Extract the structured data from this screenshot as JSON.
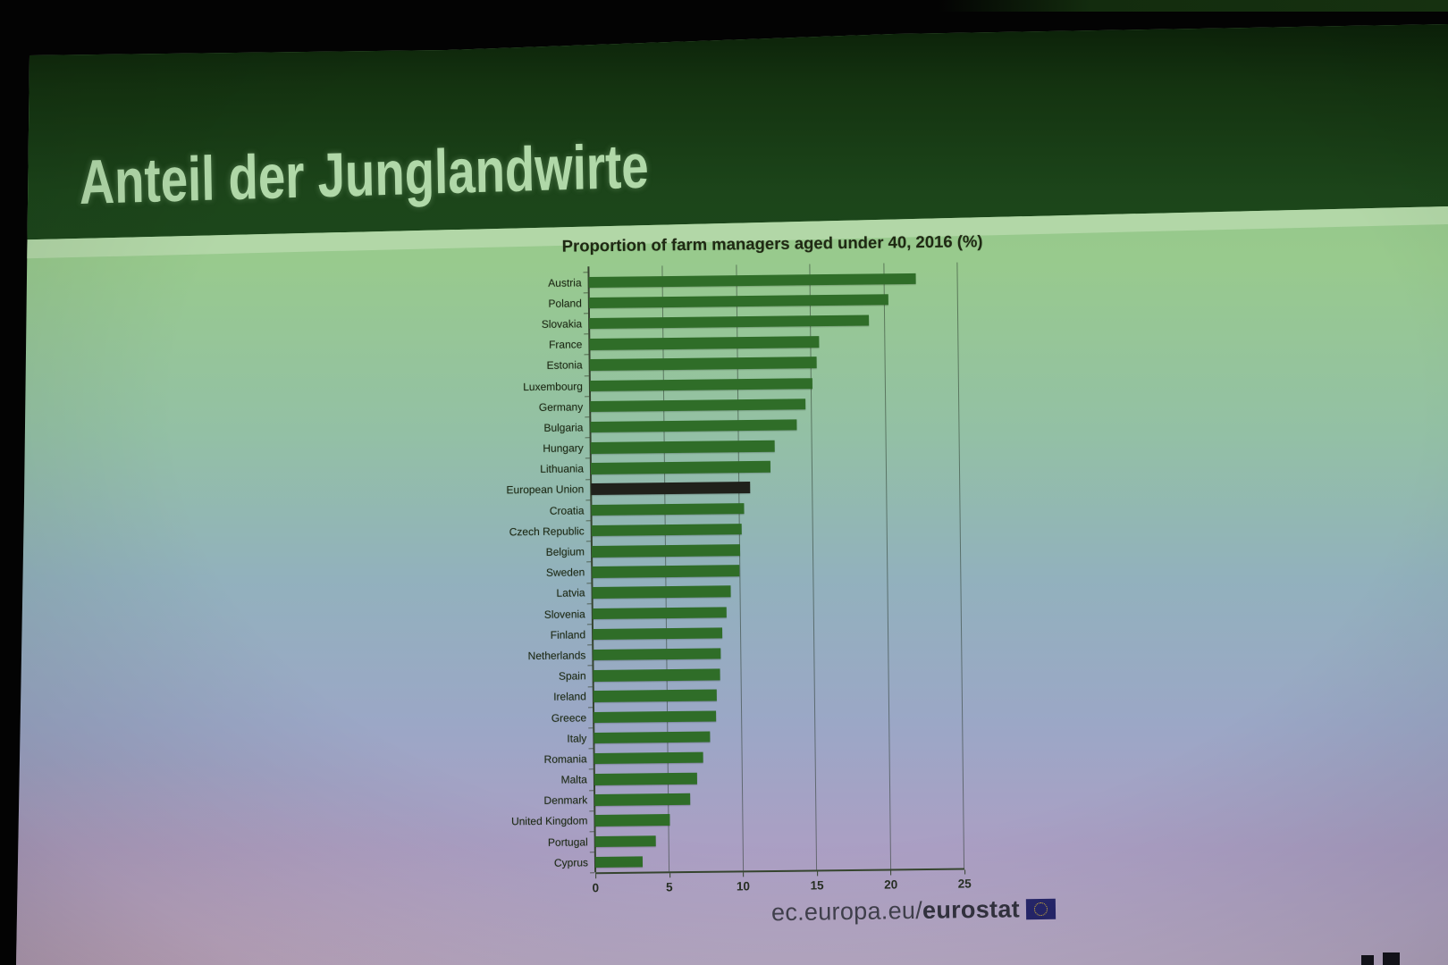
{
  "slide": {
    "header": {
      "title": "Anteil der Junglandwirte"
    },
    "footer": {
      "url_prefix": "ec.europa.eu/",
      "url_bold": "eurostat",
      "logo": "eu-flag-icon"
    },
    "colors": {
      "header_bg": "#1c451a",
      "accent_strip": "#b2d7a7",
      "title_text": "#b0d8a8",
      "bar": "#2f6d28",
      "highlight_bar": "#20211b"
    }
  },
  "chart_data": {
    "type": "bar",
    "orientation": "horizontal",
    "title": "Proportion of farm managers aged under 40, 2016 (%)",
    "categories": [
      "Austria",
      "Poland",
      "Slovakia",
      "France",
      "Estonia",
      "Luxembourg",
      "Germany",
      "Bulgaria",
      "Hungary",
      "Lithuania",
      "European Union",
      "Croatia",
      "Czech Republic",
      "Belgium",
      "Sweden",
      "Latvia",
      "Slovenia",
      "Finland",
      "Netherlands",
      "Spain",
      "Ireland",
      "Greece",
      "Italy",
      "Romania",
      "Malta",
      "Denmark",
      "United Kingdom",
      "Portugal",
      "Cyprus"
    ],
    "values": [
      22.2,
      20.3,
      19.0,
      15.6,
      15.4,
      15.1,
      14.6,
      14.0,
      12.5,
      12.2,
      10.8,
      10.4,
      10.2,
      10.1,
      10.0,
      9.4,
      9.1,
      8.8,
      8.7,
      8.6,
      8.4,
      8.3,
      7.9,
      7.4,
      7.0,
      6.5,
      5.1,
      4.1,
      3.2
    ],
    "highlight_category": "European Union",
    "xlim": [
      0,
      25
    ],
    "x_ticks": [
      0,
      5,
      10,
      15,
      20,
      25
    ],
    "grid": true,
    "legend_position": "none"
  }
}
